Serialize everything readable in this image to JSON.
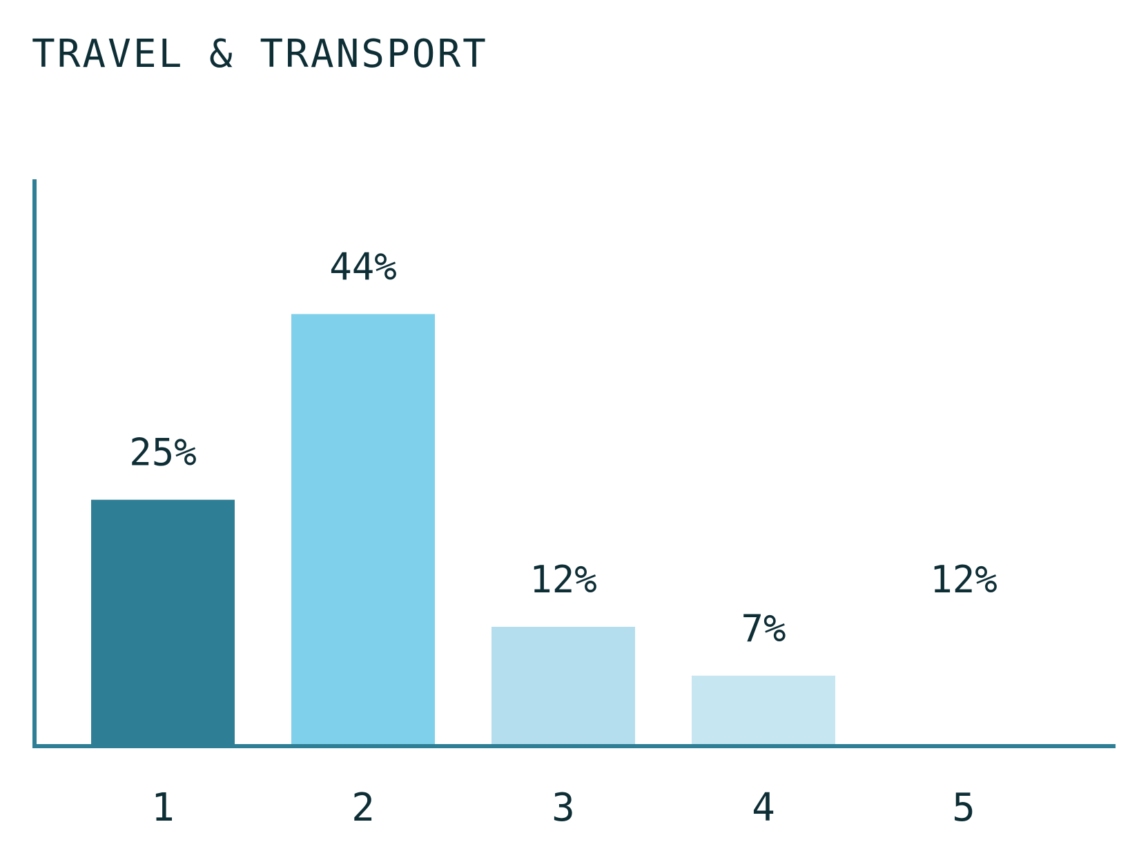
{
  "chart_data": {
    "type": "bar",
    "title": "TRAVEL & TRANSPORT",
    "xlabel": "",
    "ylabel": "",
    "categories": [
      "1",
      "2",
      "3",
      "4",
      "5"
    ],
    "values": [
      25,
      44,
      12,
      7,
      12
    ],
    "value_labels": [
      "25%",
      "44%",
      "12%",
      "7%",
      "12%"
    ],
    "bar_colors": [
      "#2e7f96",
      "#7fd0ea",
      "#b4deee",
      "#c6e6f2",
      "#ffffff"
    ],
    "ylim": [
      0,
      58
    ],
    "grid": false,
    "legend": "none"
  },
  "colors": {
    "axis": "#2e7f96",
    "text": "#0e2e36"
  }
}
